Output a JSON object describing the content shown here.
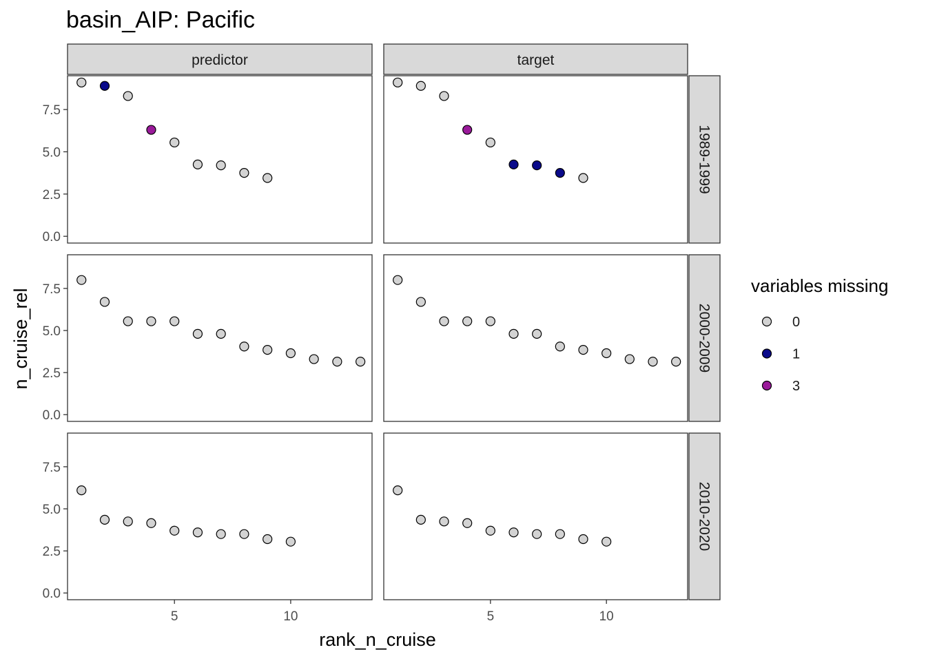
{
  "chart_data": {
    "type": "scatter",
    "title": "basin_AIP: Pacific",
    "xlabel": "rank_n_cruise",
    "ylabel": "n_cruise_rel",
    "xlim": [
      0.4,
      13.5
    ],
    "ylim": [
      -0.4,
      9.5
    ],
    "x_ticks": [
      5,
      10
    ],
    "x_tick_labels": [
      "5",
      "10"
    ],
    "y_ticks": [
      0,
      2.5,
      5,
      7.5
    ],
    "y_tick_labels": [
      "0.0",
      "2.5",
      "5.0",
      "7.5"
    ],
    "columns": [
      "predictor",
      "target"
    ],
    "rows": [
      "1989-1999",
      "2000-2009",
      "2010-2020"
    ],
    "grid": false,
    "legend": {
      "title": "variables missing",
      "placement": "right",
      "entries": [
        {
          "label": "0",
          "color": "#d3d3d3"
        },
        {
          "label": "1",
          "color": "#0a0a8a"
        },
        {
          "label": "3",
          "color": "#9a1a9a"
        }
      ]
    },
    "panels": [
      {
        "column": "predictor",
        "row": "1989-1999",
        "points": [
          [
            1,
            9.1,
            "0"
          ],
          [
            2,
            8.9,
            "1"
          ],
          [
            3,
            8.3,
            "0"
          ],
          [
            4,
            6.3,
            "3"
          ],
          [
            5,
            5.55,
            "0"
          ],
          [
            6,
            4.25,
            "0"
          ],
          [
            7,
            4.2,
            "0"
          ],
          [
            8,
            3.75,
            "0"
          ],
          [
            9,
            3.45,
            "0"
          ]
        ]
      },
      {
        "column": "target",
        "row": "1989-1999",
        "points": [
          [
            1,
            9.1,
            "0"
          ],
          [
            2,
            8.9,
            "0"
          ],
          [
            3,
            8.3,
            "0"
          ],
          [
            4,
            6.3,
            "3"
          ],
          [
            5,
            5.55,
            "0"
          ],
          [
            6,
            4.25,
            "1"
          ],
          [
            7,
            4.2,
            "1"
          ],
          [
            8,
            3.75,
            "1"
          ],
          [
            9,
            3.45,
            "0"
          ]
        ]
      },
      {
        "column": "predictor",
        "row": "2000-2009",
        "points": [
          [
            1,
            8.0,
            "0"
          ],
          [
            2,
            6.7,
            "0"
          ],
          [
            3,
            5.55,
            "0"
          ],
          [
            4,
            5.55,
            "0"
          ],
          [
            5,
            5.55,
            "0"
          ],
          [
            6,
            4.8,
            "0"
          ],
          [
            7,
            4.8,
            "0"
          ],
          [
            8,
            4.05,
            "0"
          ],
          [
            9,
            3.85,
            "0"
          ],
          [
            10,
            3.65,
            "0"
          ],
          [
            11,
            3.3,
            "0"
          ],
          [
            12,
            3.15,
            "0"
          ],
          [
            13,
            3.15,
            "0"
          ]
        ]
      },
      {
        "column": "target",
        "row": "2000-2009",
        "points": [
          [
            1,
            8.0,
            "0"
          ],
          [
            2,
            6.7,
            "0"
          ],
          [
            3,
            5.55,
            "0"
          ],
          [
            4,
            5.55,
            "0"
          ],
          [
            5,
            5.55,
            "0"
          ],
          [
            6,
            4.8,
            "0"
          ],
          [
            7,
            4.8,
            "0"
          ],
          [
            8,
            4.05,
            "0"
          ],
          [
            9,
            3.85,
            "0"
          ],
          [
            10,
            3.65,
            "0"
          ],
          [
            11,
            3.3,
            "0"
          ],
          [
            12,
            3.15,
            "0"
          ],
          [
            13,
            3.15,
            "0"
          ]
        ]
      },
      {
        "column": "predictor",
        "row": "2010-2020",
        "points": [
          [
            1,
            6.1,
            "0"
          ],
          [
            2,
            4.35,
            "0"
          ],
          [
            3,
            4.25,
            "0"
          ],
          [
            4,
            4.15,
            "0"
          ],
          [
            5,
            3.7,
            "0"
          ],
          [
            6,
            3.6,
            "0"
          ],
          [
            7,
            3.5,
            "0"
          ],
          [
            8,
            3.5,
            "0"
          ],
          [
            9,
            3.2,
            "0"
          ],
          [
            10,
            3.05,
            "0"
          ]
        ]
      },
      {
        "column": "target",
        "row": "2010-2020",
        "points": [
          [
            1,
            6.1,
            "0"
          ],
          [
            2,
            4.35,
            "0"
          ],
          [
            3,
            4.25,
            "0"
          ],
          [
            4,
            4.15,
            "0"
          ],
          [
            5,
            3.7,
            "0"
          ],
          [
            6,
            3.6,
            "0"
          ],
          [
            7,
            3.5,
            "0"
          ],
          [
            8,
            3.5,
            "0"
          ],
          [
            9,
            3.2,
            "0"
          ],
          [
            10,
            3.05,
            "0"
          ]
        ]
      }
    ]
  }
}
